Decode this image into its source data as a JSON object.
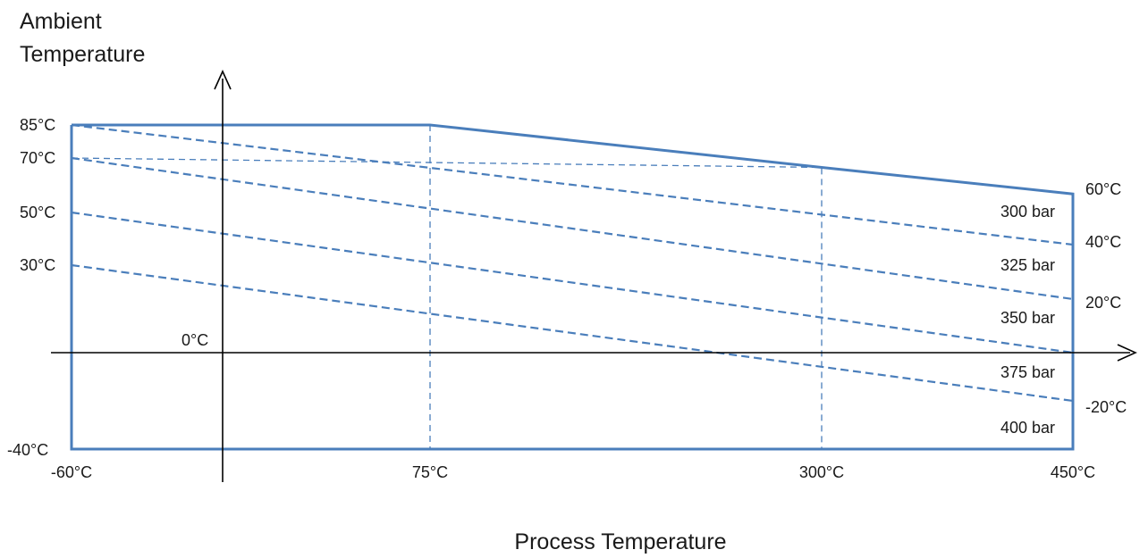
{
  "chart_data": {
    "type": "line",
    "title": "",
    "ylabel_lines": [
      "Ambient",
      "Temperature"
    ],
    "xlabel": "Process Temperature",
    "x_ticks": [
      {
        "label": "-60°C",
        "value": -60
      },
      {
        "label": "75°C",
        "value": 75
      },
      {
        "label": "300°C",
        "value": 300
      },
      {
        "label": "450°C",
        "value": 450
      }
    ],
    "y_ticks_left": [
      {
        "label": "85°C",
        "value": 85
      },
      {
        "label": "70°C",
        "value": 70
      },
      {
        "label": "50°C",
        "value": 50
      },
      {
        "label": "30°C",
        "value": 30
      },
      {
        "label": "0°C",
        "value": 0
      },
      {
        "label": "-40°C",
        "value": -40
      }
    ],
    "y_ticks_right": [
      {
        "label": "60°C",
        "value": 60
      },
      {
        "label": "40°C",
        "value": 40
      },
      {
        "label": "20°C",
        "value": 20
      },
      {
        "label": "-20°C",
        "value": -20
      }
    ],
    "envelope": {
      "x": [
        -60,
        75,
        300,
        450,
        450,
        -60,
        -60
      ],
      "y": [
        85,
        85,
        67,
        58,
        -40,
        -40,
        85
      ]
    },
    "reference_lines": [
      {
        "x": [
          75,
          75
        ],
        "y": [
          85,
          -40
        ]
      },
      {
        "x": [
          -60,
          300,
          300
        ],
        "y": [
          70,
          67,
          -40
        ]
      }
    ],
    "series": [
      {
        "x": [
          -60,
          450
        ],
        "y": [
          85,
          40
        ]
      },
      {
        "x": [
          -60,
          450
        ],
        "y": [
          70,
          20
        ]
      },
      {
        "x": [
          -60,
          450
        ],
        "y": [
          50,
          0
        ]
      },
      {
        "x": [
          -60,
          450
        ],
        "y": [
          30,
          -20
        ]
      }
    ],
    "region_labels": [
      "300 bar",
      "325 bar",
      "350 bar",
      "375 bar",
      "400 bar"
    ],
    "colors": {
      "line": "#4a7ebb",
      "axis": "#000000"
    }
  }
}
